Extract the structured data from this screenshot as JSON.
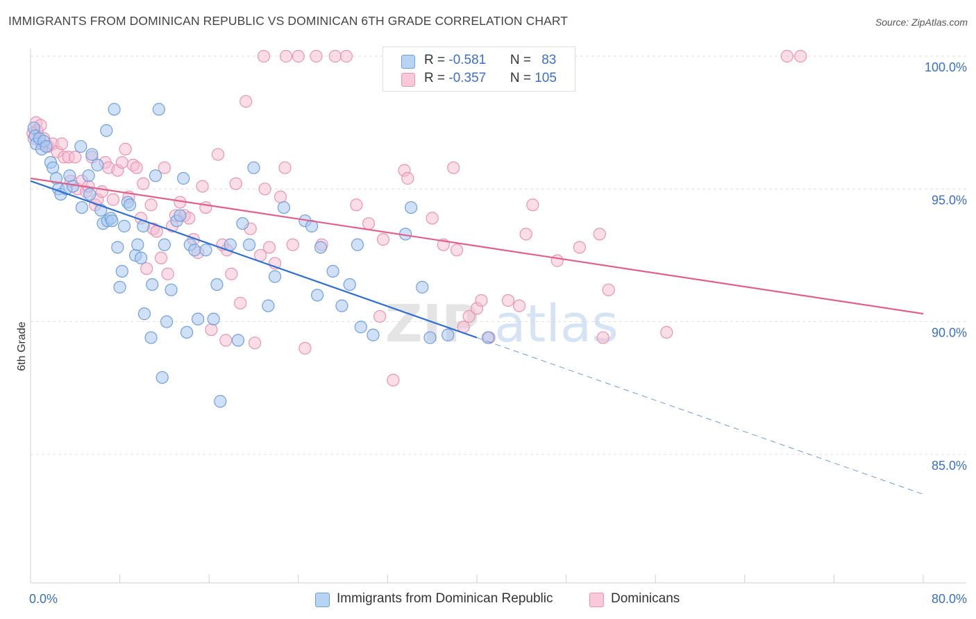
{
  "header": {
    "title": "IMMIGRANTS FROM DOMINICAN REPUBLIC VS DOMINICAN 6TH GRADE CORRELATION CHART",
    "source": "Source: ZipAtlas.com"
  },
  "watermark": {
    "part1": "ZIP",
    "part2": "atlas"
  },
  "legend": {
    "rows": [
      {
        "r_label": "R = ",
        "r_value": "-0.581",
        "n_label": "N = ",
        "n_value": "83"
      },
      {
        "r_label": "R = ",
        "r_value": "-0.357",
        "n_label": "N = ",
        "n_value": "105"
      }
    ]
  },
  "bottom_legend": {
    "items": [
      {
        "label": "Immigrants from Dominican Republic"
      },
      {
        "label": "Dominicans"
      }
    ]
  },
  "colors": {
    "blue_fill": "#a9c8f0",
    "blue_stroke": "#6e9fdc",
    "blue_line": "#2f6fd0",
    "pink_fill": "#f7bcd0",
    "pink_stroke": "#e893b2",
    "pink_line": "#e0608c",
    "grid": "#dddddd",
    "axis_text": "#3a6fc4"
  },
  "chart_data": {
    "type": "scatter",
    "title": "IMMIGRANTS FROM DOMINICAN REPUBLIC VS DOMINICAN 6TH GRADE CORRELATION CHART",
    "xlabel": "",
    "ylabel": "6th Grade",
    "xlim": [
      0,
      80
    ],
    "ylim": [
      80.5,
      100.5
    ],
    "x_tick_labels": [
      "0.0%",
      "80.0%"
    ],
    "y_ticks": [
      85,
      90,
      95,
      100
    ],
    "y_tick_labels": [
      "85.0%",
      "90.0%",
      "95.0%",
      "100.0%"
    ],
    "grid": true,
    "legend_position": "top-center",
    "series": [
      {
        "name": "Immigrants from Dominican Republic",
        "color": "#a9c8f0",
        "stats": {
          "R": -0.581,
          "N": 83
        },
        "trend": {
          "x": [
            0,
            40
          ],
          "y": [
            95.3,
            89.4
          ],
          "extrapolate_to_x": 80,
          "extrapolate_y": 83.5
        },
        "points": [
          [
            0.3,
            97.3
          ],
          [
            0.4,
            97.0
          ],
          [
            0.5,
            96.7
          ],
          [
            0.8,
            96.9
          ],
          [
            1.0,
            96.5
          ],
          [
            1.2,
            96.8
          ],
          [
            1.4,
            96.6
          ],
          [
            1.8,
            96.0
          ],
          [
            2.0,
            95.8
          ],
          [
            2.3,
            95.4
          ],
          [
            2.5,
            95.0
          ],
          [
            2.7,
            94.8
          ],
          [
            3.2,
            95.0
          ],
          [
            3.5,
            95.5
          ],
          [
            3.8,
            95.1
          ],
          [
            4.5,
            96.6
          ],
          [
            4.6,
            94.3
          ],
          [
            5.2,
            95.5
          ],
          [
            5.3,
            94.8
          ],
          [
            5.5,
            96.3
          ],
          [
            6.0,
            95.9
          ],
          [
            6.3,
            94.2
          ],
          [
            6.5,
            93.7
          ],
          [
            6.8,
            97.2
          ],
          [
            6.9,
            93.8
          ],
          [
            7.2,
            93.9
          ],
          [
            7.5,
            98.0
          ],
          [
            7.8,
            92.8
          ],
          [
            8.0,
            91.3
          ],
          [
            8.2,
            91.9
          ],
          [
            8.4,
            93.6
          ],
          [
            8.7,
            94.5
          ],
          [
            8.9,
            94.4
          ],
          [
            9.4,
            92.5
          ],
          [
            9.6,
            92.9
          ],
          [
            9.9,
            92.4
          ],
          [
            10.1,
            93.6
          ],
          [
            10.2,
            90.3
          ],
          [
            10.8,
            89.4
          ],
          [
            10.9,
            91.4
          ],
          [
            11.2,
            95.5
          ],
          [
            11.5,
            98.0
          ],
          [
            11.8,
            87.9
          ],
          [
            12.0,
            92.9
          ],
          [
            12.2,
            90.0
          ],
          [
            12.6,
            91.2
          ],
          [
            13.1,
            93.8
          ],
          [
            13.4,
            94.0
          ],
          [
            13.7,
            95.4
          ],
          [
            14.0,
            89.6
          ],
          [
            14.3,
            92.9
          ],
          [
            14.7,
            92.7
          ],
          [
            15.0,
            90.1
          ],
          [
            15.7,
            92.7
          ],
          [
            16.4,
            90.1
          ],
          [
            16.7,
            91.4
          ],
          [
            17.0,
            87.0
          ],
          [
            17.9,
            92.9
          ],
          [
            18.6,
            89.3
          ],
          [
            19.0,
            93.7
          ],
          [
            19.6,
            92.9
          ],
          [
            20.0,
            95.8
          ],
          [
            21.3,
            90.6
          ],
          [
            21.9,
            91.7
          ],
          [
            22.7,
            94.3
          ],
          [
            24.6,
            93.8
          ],
          [
            25.2,
            93.6
          ],
          [
            25.7,
            91.0
          ],
          [
            26.0,
            92.8
          ],
          [
            27.1,
            91.9
          ],
          [
            27.9,
            90.6
          ],
          [
            28.6,
            91.4
          ],
          [
            29.3,
            92.9
          ],
          [
            29.6,
            89.8
          ],
          [
            30.7,
            89.5
          ],
          [
            33.6,
            93.3
          ],
          [
            34.1,
            94.3
          ],
          [
            35.1,
            91.3
          ],
          [
            35.8,
            89.4
          ],
          [
            36.0,
            100.0
          ],
          [
            37.4,
            89.5
          ],
          [
            41.0,
            89.4
          ],
          [
            7.3,
            93.8
          ]
        ]
      },
      {
        "name": "Dominicans",
        "color": "#f7bcd0",
        "stats": {
          "R": -0.357,
          "N": 105
        },
        "trend": {
          "x": [
            0,
            80
          ],
          "y": [
            95.4,
            90.3
          ]
        },
        "points": [
          [
            0.2,
            97.1
          ],
          [
            0.3,
            96.9
          ],
          [
            0.5,
            97.5
          ],
          [
            0.6,
            97.2
          ],
          [
            0.9,
            97.4
          ],
          [
            1.0,
            96.7
          ],
          [
            1.2,
            96.9
          ],
          [
            1.4,
            96.6
          ],
          [
            1.6,
            96.6
          ],
          [
            2.0,
            96.7
          ],
          [
            2.4,
            96.4
          ],
          [
            2.8,
            96.7
          ],
          [
            3.0,
            96.2
          ],
          [
            3.4,
            96.2
          ],
          [
            3.6,
            95.3
          ],
          [
            4.0,
            96.2
          ],
          [
            4.2,
            95.0
          ],
          [
            4.6,
            95.3
          ],
          [
            5.0,
            94.9
          ],
          [
            5.2,
            95.1
          ],
          [
            5.5,
            96.2
          ],
          [
            5.8,
            94.4
          ],
          [
            6.0,
            94.6
          ],
          [
            6.4,
            94.9
          ],
          [
            6.7,
            96.0
          ],
          [
            7.0,
            95.8
          ],
          [
            7.4,
            94.6
          ],
          [
            7.8,
            95.7
          ],
          [
            8.2,
            96.0
          ],
          [
            8.5,
            96.5
          ],
          [
            8.8,
            94.7
          ],
          [
            9.2,
            95.9
          ],
          [
            9.5,
            95.8
          ],
          [
            9.9,
            93.9
          ],
          [
            10.1,
            95.2
          ],
          [
            10.4,
            92.0
          ],
          [
            10.8,
            94.4
          ],
          [
            11.0,
            93.5
          ],
          [
            11.3,
            93.4
          ],
          [
            11.7,
            92.4
          ],
          [
            12.0,
            95.8
          ],
          [
            12.3,
            91.8
          ],
          [
            12.7,
            93.6
          ],
          [
            13.0,
            94.0
          ],
          [
            13.4,
            94.5
          ],
          [
            13.8,
            94.0
          ],
          [
            14.2,
            93.9
          ],
          [
            14.6,
            93.1
          ],
          [
            15.0,
            92.6
          ],
          [
            15.4,
            95.1
          ],
          [
            15.7,
            94.3
          ],
          [
            16.2,
            89.7
          ],
          [
            16.8,
            96.3
          ],
          [
            17.2,
            92.9
          ],
          [
            17.6,
            92.7
          ],
          [
            18.0,
            91.8
          ],
          [
            18.4,
            95.2
          ],
          [
            18.8,
            90.7
          ],
          [
            19.3,
            98.3
          ],
          [
            19.7,
            93.5
          ],
          [
            20.1,
            89.2
          ],
          [
            20.6,
            92.5
          ],
          [
            21.0,
            95.0
          ],
          [
            21.4,
            92.8
          ],
          [
            21.9,
            92.2
          ],
          [
            22.4,
            94.7
          ],
          [
            22.8,
            95.8
          ],
          [
            23.5,
            92.9
          ],
          [
            24.0,
            100.0
          ],
          [
            24.6,
            89.0
          ],
          [
            25.6,
            100.0
          ],
          [
            26.1,
            92.9
          ],
          [
            27.3,
            100.0
          ],
          [
            28.3,
            100.0
          ],
          [
            29.2,
            94.4
          ],
          [
            30.3,
            93.7
          ],
          [
            31.3,
            90.2
          ],
          [
            31.6,
            93.1
          ],
          [
            32.5,
            87.8
          ],
          [
            33.5,
            95.7
          ],
          [
            33.8,
            95.4
          ],
          [
            36.0,
            93.9
          ],
          [
            37.0,
            92.9
          ],
          [
            37.9,
            95.8
          ],
          [
            38.8,
            89.8
          ],
          [
            39.3,
            90.2
          ],
          [
            40.0,
            90.5
          ],
          [
            40.4,
            90.8
          ],
          [
            41.1,
            89.4
          ],
          [
            42.8,
            90.8
          ],
          [
            43.8,
            90.6
          ],
          [
            44.4,
            93.3
          ],
          [
            45.0,
            94.4
          ],
          [
            47.2,
            92.3
          ],
          [
            49.2,
            92.8
          ],
          [
            51.0,
            93.3
          ],
          [
            51.3,
            89.4
          ],
          [
            51.8,
            91.2
          ],
          [
            57.0,
            89.6
          ],
          [
            67.8,
            100.0
          ],
          [
            69.0,
            100.0
          ],
          [
            20.9,
            100.0
          ],
          [
            17.5,
            89.3
          ],
          [
            38.2,
            92.7
          ],
          [
            22.9,
            100.0
          ]
        ]
      }
    ]
  }
}
